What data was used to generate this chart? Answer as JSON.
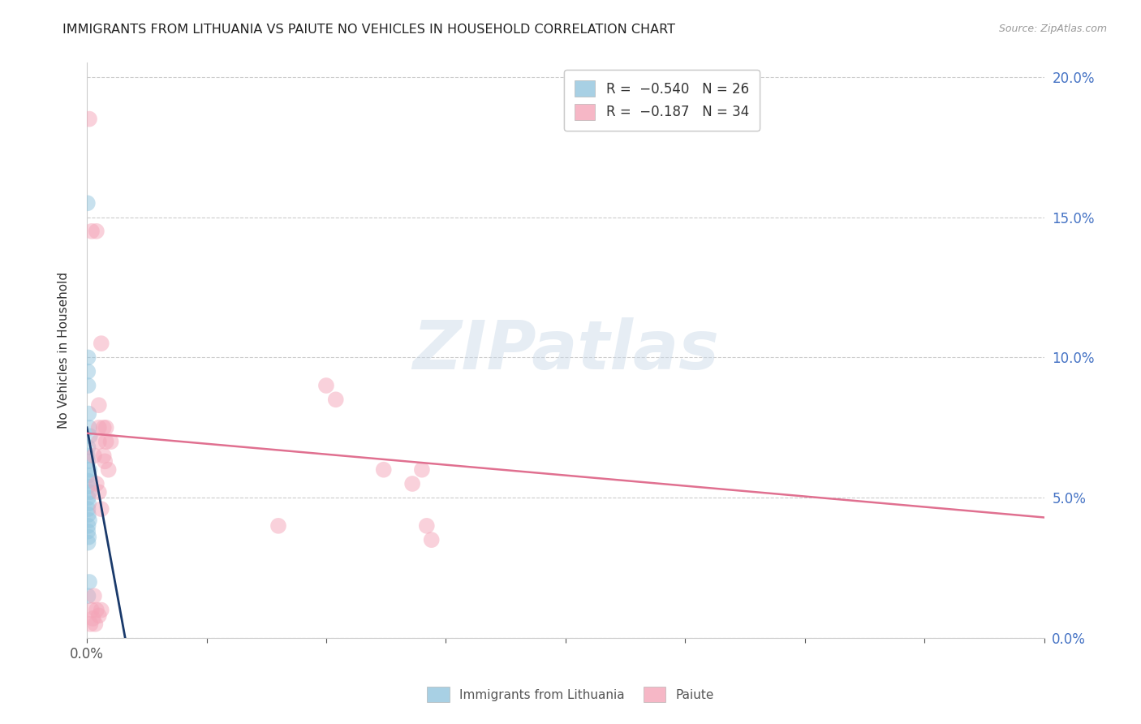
{
  "title": "IMMIGRANTS FROM LITHUANIA VS PAIUTE NO VEHICLES IN HOUSEHOLD CORRELATION CHART",
  "source": "Source: ZipAtlas.com",
  "ylabel": "No Vehicles in Household",
  "xmin": 0.0,
  "xmax": 0.8,
  "ymin": 0.0,
  "ymax": 0.205,
  "yticks": [
    0.0,
    0.05,
    0.1,
    0.15,
    0.2
  ],
  "xtick_positions": [
    0.0,
    0.1,
    0.2,
    0.3,
    0.4,
    0.5,
    0.6,
    0.7,
    0.8
  ],
  "xtick_labels_show": {
    "0.0": "0.0%"
  },
  "legend1_label": "R =  −0.540   N = 26",
  "legend2_label": "R =  −0.187   N = 34",
  "legend_bottom1": "Immigrants from Lithuania",
  "legend_bottom2": "Paiute",
  "blue_color": "#92c5de",
  "pink_color": "#f4a5b8",
  "blue_line_color": "#1a3a6b",
  "pink_line_color": "#e07090",
  "watermark_text": "ZIPatlas",
  "blue_scatter_x": [
    0.0005,
    0.001,
    0.0008,
    0.001,
    0.0015,
    0.002,
    0.0025,
    0.001,
    0.0005,
    0.001,
    0.002,
    0.0015,
    0.001,
    0.0008,
    0.002,
    0.001,
    0.0015,
    0.001,
    0.0012,
    0.002,
    0.001,
    0.0008,
    0.0015,
    0.001,
    0.002,
    0.001
  ],
  "blue_scatter_y": [
    0.155,
    0.1,
    0.095,
    0.09,
    0.08,
    0.075,
    0.072,
    0.068,
    0.065,
    0.063,
    0.06,
    0.058,
    0.056,
    0.054,
    0.052,
    0.05,
    0.048,
    0.046,
    0.044,
    0.042,
    0.04,
    0.038,
    0.036,
    0.034,
    0.02,
    0.015
  ],
  "pink_scatter_x": [
    0.002,
    0.004,
    0.008,
    0.012,
    0.01,
    0.014,
    0.016,
    0.006,
    0.018,
    0.008,
    0.01,
    0.01,
    0.016,
    0.014,
    0.015,
    0.02,
    0.01,
    0.012,
    0.2,
    0.208,
    0.16,
    0.248,
    0.28,
    0.284,
    0.288,
    0.272,
    0.006,
    0.008,
    0.012,
    0.01,
    0.004,
    0.003,
    0.005,
    0.007
  ],
  "pink_scatter_y": [
    0.185,
    0.145,
    0.145,
    0.105,
    0.083,
    0.075,
    0.07,
    0.065,
    0.06,
    0.055,
    0.075,
    0.07,
    0.075,
    0.065,
    0.063,
    0.07,
    0.052,
    0.046,
    0.09,
    0.085,
    0.04,
    0.06,
    0.06,
    0.04,
    0.035,
    0.055,
    0.015,
    0.01,
    0.01,
    0.008,
    0.01,
    0.005,
    0.007,
    0.005
  ],
  "blue_line_x": [
    0.0,
    0.032
  ],
  "blue_line_y": [
    0.075,
    0.0
  ],
  "pink_line_x": [
    0.0,
    0.8
  ],
  "pink_line_y": [
    0.073,
    0.043
  ],
  "dot_size": 200,
  "dot_alpha": 0.5
}
